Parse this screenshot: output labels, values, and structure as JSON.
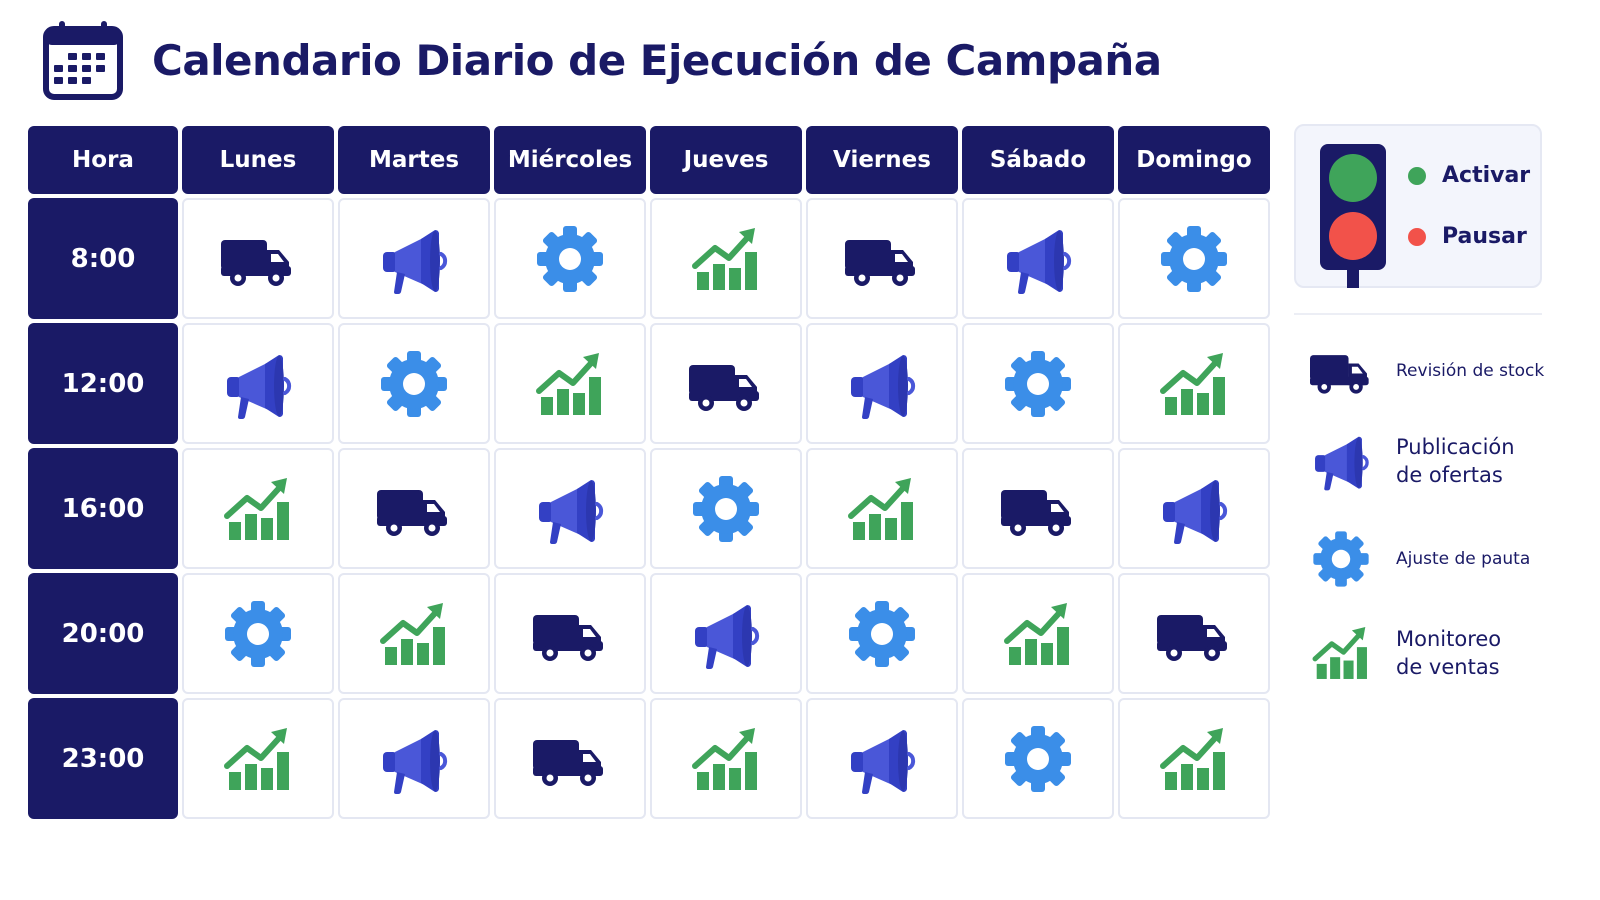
{
  "title": "Calendario Diario de Ejecución de Campaña",
  "colors": {
    "navy": "#1a1a66",
    "truck": "#1a1a66",
    "megaphone": "#4a57d8",
    "gear": "#3b8ee8",
    "chart": "#3fa45a",
    "red": "#f2524a"
  },
  "table": {
    "corner_header": "Hora",
    "days": [
      "Lunes",
      "Martes",
      "Miércoles",
      "Jueves",
      "Viernes",
      "Sábado",
      "Domingo"
    ],
    "rows": [
      {
        "time": "8:00",
        "icons": [
          "truck-icon",
          "megaphone-icon",
          "gear-icon",
          "chart-icon",
          "truck-icon",
          "megaphone-icon",
          "gear-icon"
        ]
      },
      {
        "time": "12:00",
        "icons": [
          "megaphone-icon",
          "gear-icon",
          "chart-icon",
          "truck-icon",
          "megaphone-icon",
          "gear-icon",
          "chart-icon"
        ]
      },
      {
        "time": "16:00",
        "icons": [
          "chart-icon",
          "truck-icon",
          "megaphone-icon",
          "gear-icon",
          "chart-icon",
          "truck-icon",
          "megaphone-icon"
        ]
      },
      {
        "time": "20:00",
        "icons": [
          "gear-icon",
          "chart-icon",
          "truck-icon",
          "megaphone-icon",
          "gear-icon",
          "chart-icon",
          "truck-icon"
        ]
      },
      {
        "time": "23:00",
        "icons": [
          "chart-icon",
          "megaphone-icon",
          "truck-icon",
          "chart-icon",
          "megaphone-icon",
          "gear-icon",
          "chart-icon"
        ]
      }
    ]
  },
  "status": {
    "activate_label": "Activar",
    "pause_label": "Pausar"
  },
  "legend": [
    {
      "icon": "truck-icon",
      "lines": [
        "Revisión de stock"
      ]
    },
    {
      "icon": "megaphone-icon",
      "lines": [
        "Publicación",
        "de ofertas"
      ]
    },
    {
      "icon": "gear-icon",
      "lines": [
        "Ajuste de pauta"
      ]
    },
    {
      "icon": "chart-icon",
      "lines": [
        "Monitoreo",
        "de ventas"
      ]
    }
  ]
}
